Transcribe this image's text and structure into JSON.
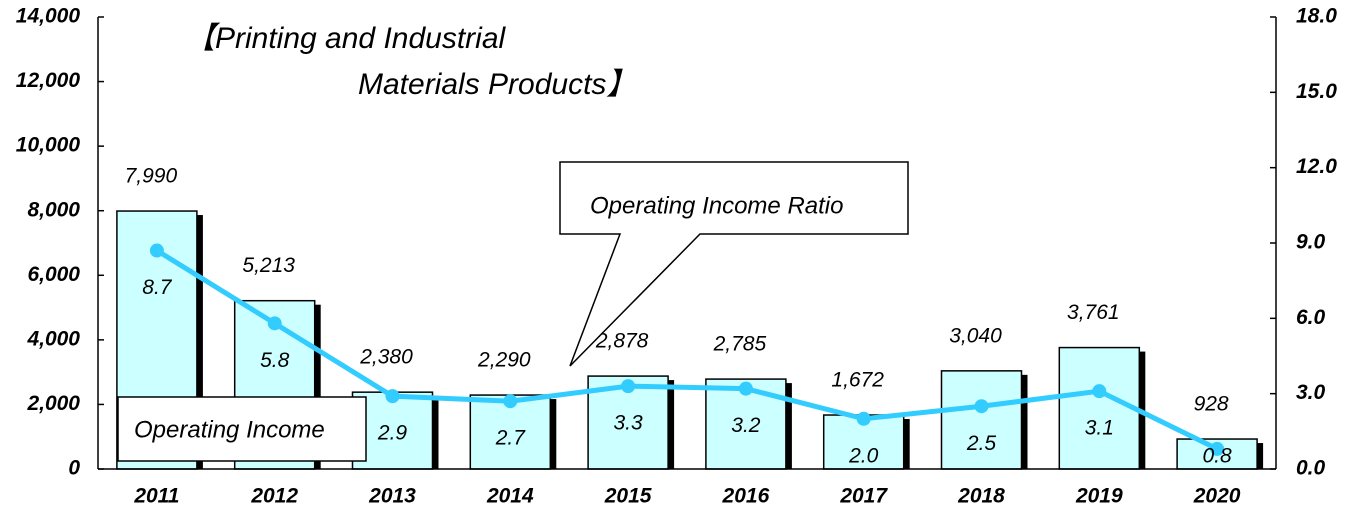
{
  "chart_data": {
    "type": "bar_line",
    "title": [
      "【Printing and Industrial",
      "Materials Products】"
    ],
    "categories": [
      "2011",
      "2012",
      "2013",
      "2014",
      "2015",
      "2016",
      "2017",
      "2018",
      "2019",
      "2020"
    ],
    "series": [
      {
        "name": "Operating Income",
        "type": "bar",
        "axis": "y",
        "color": "#ccffff",
        "values": [
          7990,
          5213,
          2380,
          2290,
          2878,
          2785,
          1672,
          3040,
          3761,
          928
        ],
        "value_labels": [
          "7,990",
          "5,213",
          "2,380",
          "2,290",
          "2,878",
          "2,785",
          "1,672",
          "3,040",
          "3,761",
          "928"
        ]
      },
      {
        "name": "Operating Income Ratio",
        "type": "line",
        "axis": "y2",
        "color": "#33ccff",
        "values": [
          8.7,
          5.8,
          2.9,
          2.7,
          3.3,
          3.2,
          2.0,
          2.5,
          3.1,
          0.8
        ],
        "value_labels": [
          "8.7",
          "5.8",
          "2.9",
          "2.7",
          "3.3",
          "3.2",
          "2.0",
          "2.5",
          "3.1",
          "0.8"
        ]
      }
    ],
    "ylim": [
      0,
      14000
    ],
    "yticks": [
      0,
      {
        "value": 2000,
        "label": "2,000"
      },
      {
        "value": 4000,
        "label": "4,000"
      },
      {
        "value": 6000,
        "label": "6,000"
      },
      {
        "value": 8000,
        "label": "8,000"
      },
      {
        "value": 10000,
        "label": "10,000"
      },
      {
        "value": 12000,
        "label": "12,000"
      },
      {
        "value": 14000,
        "label": "14,000"
      }
    ],
    "y2lim": [
      0,
      18
    ],
    "y2ticks": [
      {
        "value": 0,
        "label": "0.0"
      },
      {
        "value": 3,
        "label": "3.0"
      },
      {
        "value": 6,
        "label": "6.0"
      },
      {
        "value": 9,
        "label": "9.0"
      },
      {
        "value": 12,
        "label": "12.0"
      },
      {
        "value": 15,
        "label": "15.0"
      },
      {
        "value": 18,
        "label": "18.0"
      }
    ]
  }
}
